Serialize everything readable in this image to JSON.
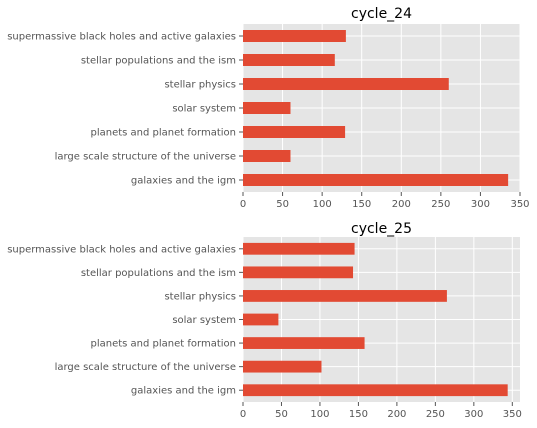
{
  "chart_data": [
    {
      "type": "bar",
      "orientation": "horizontal",
      "title": "cycle_24",
      "categories": [
        "supermassive black holes and active galaxies",
        "stellar populations and the ism",
        "stellar physics",
        "solar system",
        "planets and planet formation",
        "large scale structure of the universe",
        "galaxies and the igm"
      ],
      "values": [
        130,
        116,
        260,
        60,
        129,
        60,
        335
      ],
      "xlim": [
        0,
        350
      ],
      "xticks": [
        0,
        50,
        100,
        150,
        200,
        250,
        300,
        350
      ],
      "grid": true,
      "bar_color": "#e24a33",
      "background_color": "#e5e5e5"
    },
    {
      "type": "bar",
      "orientation": "horizontal",
      "title": "cycle_25",
      "categories": [
        "supermassive black holes and active galaxies",
        "stellar populations and the ism",
        "stellar physics",
        "solar system",
        "planets and planet formation",
        "large scale structure of the universe",
        "galaxies and the igm"
      ],
      "values": [
        145,
        143,
        265,
        46,
        158,
        102,
        344
      ],
      "xlim": [
        0,
        360
      ],
      "xticks": [
        0,
        50,
        100,
        150,
        200,
        250,
        300,
        350
      ],
      "grid": true,
      "bar_color": "#e24a33",
      "background_color": "#e5e5e5"
    }
  ]
}
